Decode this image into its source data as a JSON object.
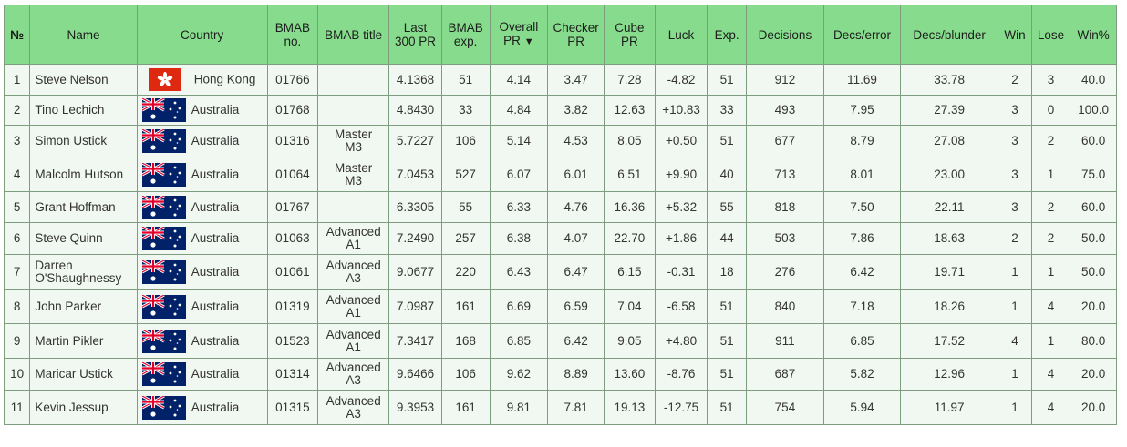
{
  "table": {
    "headers": {
      "num": "№",
      "name": "Name",
      "country": "Country",
      "bmab_no": "BMAB no.",
      "bmab_title": "BMAB title",
      "last300": "Last 300 PR",
      "bmab_exp": "BMAB exp.",
      "overall_pr": "Overall PR",
      "overall_sort": "▼",
      "checker_pr": "Checker PR",
      "cube_pr": "Cube PR",
      "luck": "Luck",
      "exp": "Exp.",
      "decisions": "Decisions",
      "decs_error": "Decs/error",
      "decs_blunder": "Decs/blunder",
      "win": "Win",
      "lose": "Lose",
      "winpct": "Win%"
    },
    "rows": [
      {
        "num": "1",
        "name": "Steve Nelson",
        "flag": "hong-kong-flag-icon",
        "country": "Hong Kong",
        "bmab_no": "01766",
        "title1": "",
        "title2": "",
        "last300": "4.1368",
        "bmab_exp": "51",
        "overall": "4.14",
        "checker": "3.47",
        "cube": "7.28",
        "luck": "-4.82",
        "exp": "51",
        "decisions": "912",
        "decs_error": "11.69",
        "decs_blunder": "33.78",
        "win": "2",
        "lose": "3",
        "winpct": "40.0"
      },
      {
        "num": "2",
        "name": "Tino Lechich",
        "flag": "australia-flag-icon",
        "country": "Australia",
        "bmab_no": "01768",
        "title1": "",
        "title2": "",
        "last300": "4.8430",
        "bmab_exp": "33",
        "overall": "4.84",
        "checker": "3.82",
        "cube": "12.63",
        "luck": "+10.83",
        "exp": "33",
        "decisions": "493",
        "decs_error": "7.95",
        "decs_blunder": "27.39",
        "win": "3",
        "lose": "0",
        "winpct": "100.0"
      },
      {
        "num": "3",
        "name": "Simon Ustick",
        "flag": "australia-flag-icon",
        "country": "Australia",
        "bmab_no": "01316",
        "title1": "Master",
        "title2": "M3",
        "last300": "5.7227",
        "bmab_exp": "106",
        "overall": "5.14",
        "checker": "4.53",
        "cube": "8.05",
        "luck": "+0.50",
        "exp": "51",
        "decisions": "677",
        "decs_error": "8.79",
        "decs_blunder": "27.08",
        "win": "3",
        "lose": "2",
        "winpct": "60.0"
      },
      {
        "num": "4",
        "name": "Malcolm Hutson",
        "flag": "australia-flag-icon",
        "country": "Australia",
        "bmab_no": "01064",
        "title1": "Master",
        "title2": "M3",
        "last300": "7.0453",
        "bmab_exp": "527",
        "overall": "6.07",
        "checker": "6.01",
        "cube": "6.51",
        "luck": "+9.90",
        "exp": "40",
        "decisions": "713",
        "decs_error": "8.01",
        "decs_blunder": "23.00",
        "win": "3",
        "lose": "1",
        "winpct": "75.0"
      },
      {
        "num": "5",
        "name": "Grant Hoffman",
        "flag": "australia-flag-icon",
        "country": "Australia",
        "bmab_no": "01767",
        "title1": "",
        "title2": "",
        "last300": "6.3305",
        "bmab_exp": "55",
        "overall": "6.33",
        "checker": "4.76",
        "cube": "16.36",
        "luck": "+5.32",
        "exp": "55",
        "decisions": "818",
        "decs_error": "7.50",
        "decs_blunder": "22.11",
        "win": "3",
        "lose": "2",
        "winpct": "60.0"
      },
      {
        "num": "6",
        "name": "Steve Quinn",
        "flag": "australia-flag-icon",
        "country": "Australia",
        "bmab_no": "01063",
        "title1": "Advanced",
        "title2": "A1",
        "last300": "7.2490",
        "bmab_exp": "257",
        "overall": "6.38",
        "checker": "4.07",
        "cube": "22.70",
        "luck": "+1.86",
        "exp": "44",
        "decisions": "503",
        "decs_error": "7.86",
        "decs_blunder": "18.63",
        "win": "2",
        "lose": "2",
        "winpct": "50.0"
      },
      {
        "num": "7",
        "name": "Darren O'Shaughnessy",
        "flag": "australia-flag-icon",
        "country": "Australia",
        "bmab_no": "01061",
        "title1": "Advanced",
        "title2": "A3",
        "last300": "9.0677",
        "bmab_exp": "220",
        "overall": "6.43",
        "checker": "6.47",
        "cube": "6.15",
        "luck": "-0.31",
        "exp": "18",
        "decisions": "276",
        "decs_error": "6.42",
        "decs_blunder": "19.71",
        "win": "1",
        "lose": "1",
        "winpct": "50.0"
      },
      {
        "num": "8",
        "name": "John Parker",
        "flag": "australia-flag-icon",
        "country": "Australia",
        "bmab_no": "01319",
        "title1": "Advanced",
        "title2": "A1",
        "last300": "7.0987",
        "bmab_exp": "161",
        "overall": "6.69",
        "checker": "6.59",
        "cube": "7.04",
        "luck": "-6.58",
        "exp": "51",
        "decisions": "840",
        "decs_error": "7.18",
        "decs_blunder": "18.26",
        "win": "1",
        "lose": "4",
        "winpct": "20.0"
      },
      {
        "num": "9",
        "name": "Martin Pikler",
        "flag": "australia-flag-icon",
        "country": "Australia",
        "bmab_no": "01523",
        "title1": "Advanced",
        "title2": "A1",
        "last300": "7.3417",
        "bmab_exp": "168",
        "overall": "6.85",
        "checker": "6.42",
        "cube": "9.05",
        "luck": "+4.80",
        "exp": "51",
        "decisions": "911",
        "decs_error": "6.85",
        "decs_blunder": "17.52",
        "win": "4",
        "lose": "1",
        "winpct": "80.0"
      },
      {
        "num": "10",
        "name": "Maricar Ustick",
        "flag": "australia-flag-icon",
        "country": "Australia",
        "bmab_no": "01314",
        "title1": "Advanced",
        "title2": "A3",
        "last300": "9.6466",
        "bmab_exp": "106",
        "overall": "9.62",
        "checker": "8.89",
        "cube": "13.60",
        "luck": "-8.76",
        "exp": "51",
        "decisions": "687",
        "decs_error": "5.82",
        "decs_blunder": "12.96",
        "win": "1",
        "lose": "4",
        "winpct": "20.0"
      },
      {
        "num": "11",
        "name": "Kevin Jessup",
        "flag": "australia-flag-icon",
        "country": "Australia",
        "bmab_no": "01315",
        "title1": "Advanced",
        "title2": "A3",
        "last300": "9.3953",
        "bmab_exp": "161",
        "overall": "9.81",
        "checker": "7.81",
        "cube": "19.13",
        "luck": "-12.75",
        "exp": "51",
        "decisions": "754",
        "decs_error": "5.94",
        "decs_blunder": "11.97",
        "win": "1",
        "lose": "4",
        "winpct": "20.0"
      }
    ]
  },
  "colors": {
    "header_bg": "#86dc8c",
    "row_bg": "#f1f7f1",
    "border": "#7e9c7e",
    "hk_red": "#de2910",
    "au_blue": "#012169",
    "au_red": "#e4002b"
  }
}
